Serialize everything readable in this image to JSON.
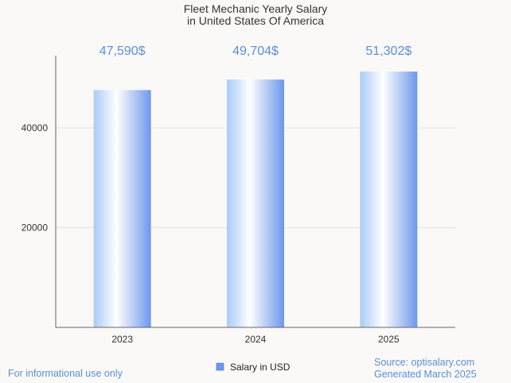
{
  "chart_data": {
    "type": "bar",
    "title": "Fleet Mechanic Yearly Salary",
    "subtitle": "in United States Of America",
    "categories": [
      "2023",
      "2024",
      "2025"
    ],
    "values": [
      47590,
      49704,
      51302
    ],
    "value_labels": [
      "47,590$",
      "49,704$",
      "51,302$"
    ],
    "series": [
      {
        "name": "Salary in USD",
        "values": [
          47590,
          49704,
          51302
        ]
      }
    ],
    "ylim": [
      0,
      54500
    ],
    "yticks": [
      20000,
      40000
    ],
    "ytick_labels": [
      "20000",
      "40000"
    ],
    "xlabel": "",
    "ylabel": "",
    "grid": true,
    "legend_position": "bottom-center"
  },
  "footer": {
    "disclaimer": "For informational use only",
    "source": "Source: optisalary.com",
    "generated": "Generated March 2025"
  },
  "colors": {
    "accent": "#5b8fd8",
    "bar_light": "#ffffff",
    "bar_mid": "#a9cbf7",
    "bar_dark": "#6d97ec",
    "grid": "#e2e2e2",
    "axis": "#666666",
    "background": "#faf9f7"
  }
}
